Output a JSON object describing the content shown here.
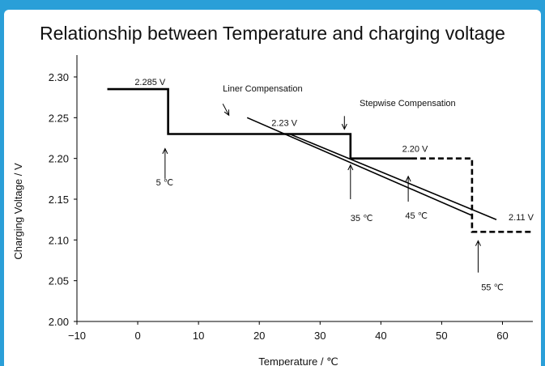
{
  "colors": {
    "frame": "#2a9fd8",
    "line": "#000000",
    "background": "#ffffff"
  },
  "chart_data": {
    "type": "line",
    "title": "Relationship between Temperature and charging voltage",
    "xlabel": "Temperature / ℃",
    "ylabel": "Charging Voltage / V",
    "xlim": [
      -10,
      65
    ],
    "ylim": [
      2.0,
      2.3
    ],
    "x_ticks": [
      {
        "value": -10,
        "label": "−10"
      },
      {
        "value": 0,
        "label": "0"
      },
      {
        "value": 10,
        "label": "10"
      },
      {
        "value": 20,
        "label": "20"
      },
      {
        "value": 30,
        "label": "30"
      },
      {
        "value": 40,
        "label": "40"
      },
      {
        "value": 50,
        "label": "50"
      },
      {
        "value": 60,
        "label": "60"
      }
    ],
    "y_ticks": [
      {
        "value": 2.0,
        "label": "2.00"
      },
      {
        "value": 2.05,
        "label": "2.05"
      },
      {
        "value": 2.1,
        "label": "2.10"
      },
      {
        "value": 2.15,
        "label": "2.15"
      },
      {
        "value": 2.2,
        "label": "2.20"
      },
      {
        "value": 2.25,
        "label": "2.25"
      },
      {
        "value": 2.3,
        "label": "2.30"
      }
    ],
    "grid": false,
    "series": [
      {
        "style": "solid-thick",
        "points": [
          [
            -5,
            2.285
          ],
          [
            5,
            2.285
          ],
          [
            5,
            2.23
          ],
          [
            35,
            2.23
          ],
          [
            35,
            2.2
          ],
          [
            45,
            2.2
          ]
        ]
      },
      {
        "style": "dashed-thick",
        "points": [
          [
            45,
            2.2
          ],
          [
            55,
            2.2
          ],
          [
            55,
            2.11
          ],
          [
            65,
            2.11
          ]
        ]
      },
      {
        "style": "solid-thin",
        "points": [
          [
            18,
            2.25
          ],
          [
            55,
            2.13
          ]
        ]
      },
      {
        "style": "solid-thin",
        "points": [
          [
            25,
            2.23
          ],
          [
            59,
            2.125
          ]
        ]
      }
    ],
    "annotations": [
      {
        "text": "2.285 V",
        "x": -0.5,
        "y": 2.29
      },
      {
        "text": "Liner Compensation",
        "x": 14,
        "y": 2.282
      },
      {
        "text": "2.23 V",
        "x": 22,
        "y": 2.24
      },
      {
        "text": "Stepwise Compensation",
        "x": 36.5,
        "y": 2.264
      },
      {
        "text": "2.20 V",
        "x": 43.5,
        "y": 2.208
      },
      {
        "text": "2.11 V",
        "x": 61,
        "y": 2.124
      },
      {
        "text": "5 ℃",
        "x": 3,
        "y": 2.167
      },
      {
        "text": "35 ℃",
        "x": 35,
        "y": 2.123
      },
      {
        "text": "45 ℃",
        "x": 44,
        "y": 2.126
      },
      {
        "text": "55 ℃",
        "x": 56.5,
        "y": 2.038
      }
    ],
    "arrows": [
      {
        "x1": 14,
        "y1": 2.267,
        "x2": 15,
        "y2": 2.253,
        "ann": "Liner Compensation"
      },
      {
        "x1": 34,
        "y1": 2.252,
        "x2": 34,
        "y2": 2.236,
        "ann": "Stepwise Compensation"
      },
      {
        "x1": 4.5,
        "y1": 2.175,
        "x2": 4.5,
        "y2": 2.212,
        "ann": "5 ℃"
      },
      {
        "x1": 35,
        "y1": 2.15,
        "x2": 35,
        "y2": 2.192,
        "ann": "35 ℃"
      },
      {
        "x1": 44.5,
        "y1": 2.147,
        "x2": 44.5,
        "y2": 2.178,
        "ann": "45 ℃"
      },
      {
        "x1": 56,
        "y1": 2.06,
        "x2": 56,
        "y2": 2.099,
        "ann": "55 ℃"
      }
    ]
  }
}
